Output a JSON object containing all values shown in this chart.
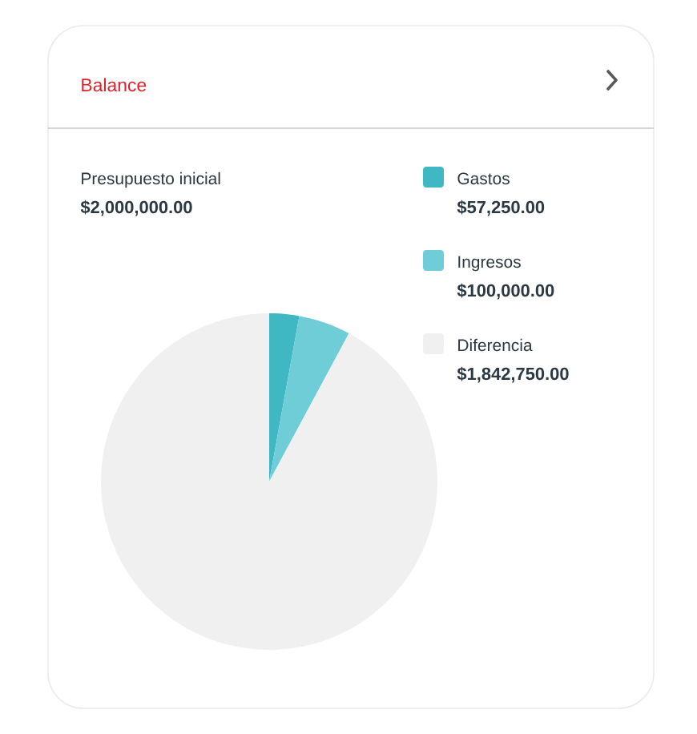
{
  "chart_data": {
    "type": "pie",
    "title": "Balance",
    "categories": [
      "Gastos",
      "Ingresos",
      "Diferencia"
    ],
    "values": [
      57250,
      100000,
      1842750
    ],
    "value_labels": [
      "$57,250.00",
      "$100,000.00",
      "$1,842,750.00"
    ],
    "colors": [
      "#3fb8c4",
      "#6fcdd7",
      "#f0f0f0"
    ],
    "annotations": [
      "Presupuesto inicial",
      "$2,000,000.00"
    ],
    "legend": "top right"
  }
}
